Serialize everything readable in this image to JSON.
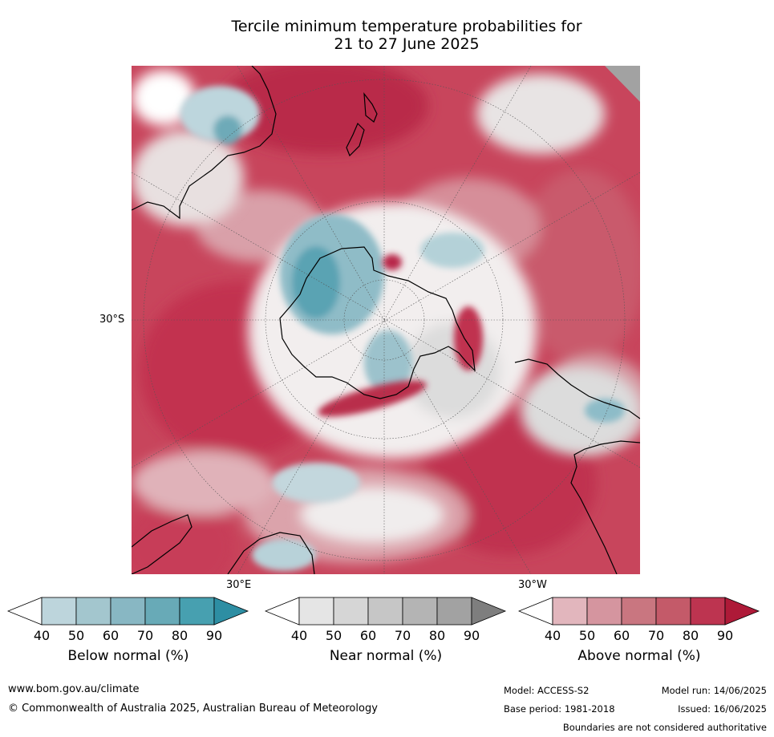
{
  "title_line1": "Tercile minimum temperature probabilities for",
  "title_line2": "21 to 27 June 2025",
  "map": {
    "projection": "south-polar-stereographic",
    "lat_labels": [
      "30°S"
    ],
    "lon_labels": [
      "30°E",
      "30°W"
    ],
    "colors": {
      "below_normal": "#3a9aaa",
      "near_normal": "#c8c8c8",
      "above_normal": "#c22a48",
      "ocean_blank": "#ffffff",
      "coast": "#000000"
    }
  },
  "colorbars": [
    {
      "label": "Below normal (%)",
      "ticks": [
        "40",
        "50",
        "60",
        "70",
        "80",
        "90"
      ],
      "colors": [
        "#ffffff",
        "#bdd5dc",
        "#a3c6ce",
        "#88b7c3",
        "#68aab7",
        "#47a0b0",
        "#2d8ea3"
      ]
    },
    {
      "label": "Near normal (%)",
      "ticks": [
        "40",
        "50",
        "60",
        "70",
        "80",
        "90"
      ],
      "colors": [
        "#ffffff",
        "#e5e5e5",
        "#d6d6d6",
        "#c6c6c6",
        "#b4b4b4",
        "#a2a2a2",
        "#7e7e7e"
      ]
    },
    {
      "label": "Above normal (%)",
      "ticks": [
        "40",
        "50",
        "60",
        "70",
        "80",
        "90"
      ],
      "colors": [
        "#ffffff",
        "#e2b6bd",
        "#d5959f",
        "#c97680",
        "#c45a69",
        "#bd3450",
        "#ae1a38"
      ]
    }
  ],
  "footer": {
    "website": "www.bom.gov.au/climate",
    "copyright": "© Commonwealth of Australia 2025, Australian Bureau of Meteorology",
    "model": "Model: ACCESS-S2",
    "base_period": "Base period: 1981-2018",
    "model_run": "Model run: 14/06/2025",
    "issued": "Issued: 16/06/2025",
    "disclaimer": "Boundaries are not considered authoritative"
  }
}
